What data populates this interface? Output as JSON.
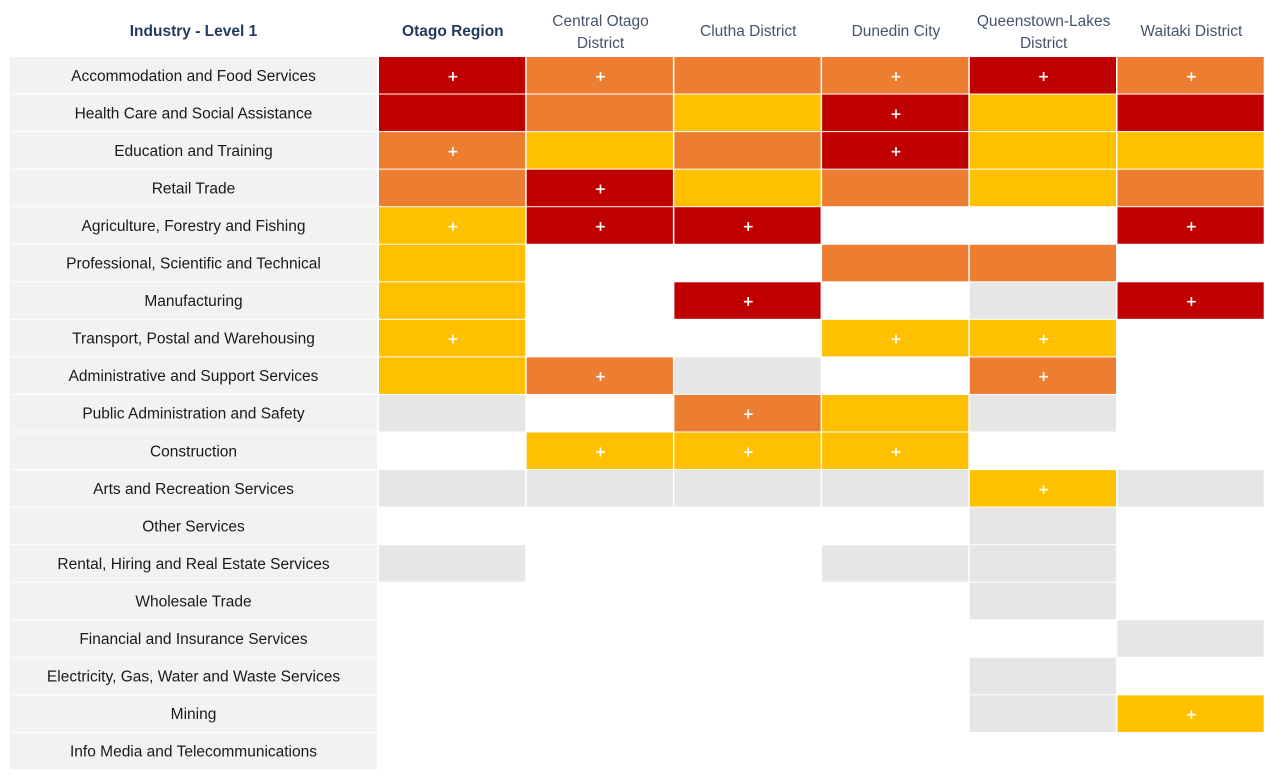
{
  "chart_data": {
    "type": "heatmap",
    "title": "",
    "row_header": "Industry - Level 1",
    "columns": [
      "Otago Region",
      "Central Otago District",
      "Clutha District",
      "Dunedin City",
      "Queenstown-Lakes District",
      "Waitaki District"
    ],
    "column_lines": [
      [
        "Otago Region"
      ],
      [
        "Central Otago",
        "District"
      ],
      [
        "Clutha District"
      ],
      [
        "Dunedin City"
      ],
      [
        "Queenstown-Lakes",
        "District"
      ],
      [
        "Waitaki District"
      ]
    ],
    "rows": [
      "Accommodation and Food Services",
      "Health Care and Social Assistance",
      "Education and Training",
      "Retail Trade",
      "Agriculture, Forestry and Fishing",
      "Professional, Scientific and Technical",
      "Manufacturing",
      "Transport, Postal and Warehousing",
      "Administrative and Support Services",
      "Public Administration and Safety",
      "Construction",
      "Arts and Recreation Services",
      "Other Services",
      "Rental, Hiring and Real Estate Services",
      "Wholesale Trade",
      "Financial and Insurance Services",
      "Electricity, Gas, Water and Waste Services",
      "Mining",
      "Info Media and Telecommunications"
    ],
    "levels": [
      [
        3,
        2,
        2,
        2,
        3,
        2
      ],
      [
        3,
        2,
        1,
        3,
        1,
        3
      ],
      [
        2,
        1,
        2,
        3,
        1,
        1
      ],
      [
        2,
        3,
        1,
        2,
        1,
        2
      ],
      [
        1,
        3,
        3,
        0,
        0,
        3
      ],
      [
        1,
        0,
        0,
        2,
        2,
        0
      ],
      [
        1,
        0,
        3,
        0,
        -1,
        3
      ],
      [
        1,
        0,
        0,
        1,
        1,
        0
      ],
      [
        1,
        2,
        -1,
        0,
        2,
        0
      ],
      [
        -1,
        0,
        2,
        1,
        -1,
        0
      ],
      [
        0,
        1,
        1,
        1,
        0,
        0
      ],
      [
        -1,
        -1,
        -1,
        -1,
        1,
        -1
      ],
      [
        0,
        0,
        0,
        0,
        -1,
        0
      ],
      [
        -1,
        0,
        0,
        -1,
        -1,
        0
      ],
      [
        0,
        0,
        0,
        0,
        -1,
        0
      ],
      [
        0,
        0,
        0,
        0,
        0,
        -1
      ],
      [
        0,
        0,
        0,
        0,
        -1,
        0
      ],
      [
        0,
        0,
        0,
        0,
        -1,
        1
      ],
      [
        0,
        0,
        0,
        0,
        0,
        0
      ]
    ],
    "plus_marks": [
      [
        1,
        1,
        0,
        1,
        1,
        1
      ],
      [
        0,
        0,
        0,
        1,
        0,
        0
      ],
      [
        1,
        0,
        0,
        1,
        0,
        0
      ],
      [
        0,
        1,
        0,
        0,
        0,
        0
      ],
      [
        1,
        1,
        1,
        0,
        0,
        1
      ],
      [
        0,
        0,
        0,
        0,
        0,
        0
      ],
      [
        0,
        0,
        1,
        0,
        0,
        1
      ],
      [
        1,
        0,
        0,
        1,
        1,
        0
      ],
      [
        0,
        1,
        0,
        0,
        1,
        0
      ],
      [
        0,
        0,
        1,
        0,
        0,
        0
      ],
      [
        0,
        1,
        1,
        1,
        0,
        0
      ],
      [
        0,
        0,
        0,
        0,
        1,
        0
      ],
      [
        0,
        0,
        0,
        0,
        0,
        0
      ],
      [
        0,
        0,
        0,
        0,
        0,
        0
      ],
      [
        0,
        0,
        0,
        0,
        0,
        0
      ],
      [
        0,
        0,
        0,
        0,
        0,
        0
      ],
      [
        0,
        0,
        0,
        0,
        0,
        0
      ],
      [
        0,
        0,
        0,
        0,
        0,
        1
      ],
      [
        0,
        0,
        0,
        0,
        0,
        0
      ]
    ],
    "plus_symbol": "+",
    "legend": "none",
    "colors": {
      "level_3": "#c00000",
      "level_2": "#ed7d31",
      "level_1": "#ffc000",
      "level_neg1": "#e7e6e6",
      "level_0": "#ffffff",
      "row_label_bg": "#f2f2f2",
      "header_bold": "#1f3a5f",
      "header_text": "#44546a",
      "plus": "#ffffff"
    }
  }
}
